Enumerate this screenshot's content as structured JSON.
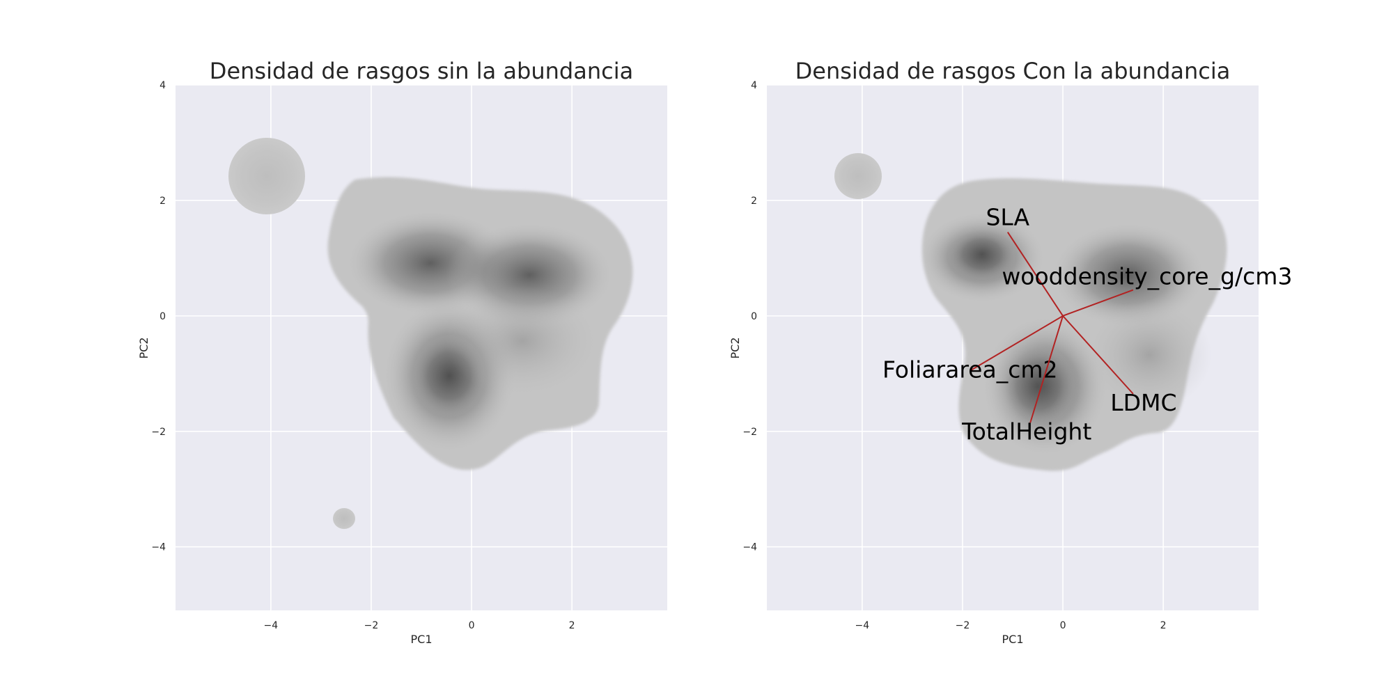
{
  "chart_data": [
    {
      "type": "density",
      "title": "Densidad de rasgos sin la abundancia",
      "xlabel": "PC1",
      "ylabel": "PC2",
      "xlim": [
        -5.9,
        3.9
      ],
      "ylim": [
        -5.1,
        4.0
      ],
      "xticks": [
        -4,
        -2,
        0,
        2
      ],
      "yticks": [
        -4,
        -2,
        0,
        2,
        4
      ],
      "xtick_labels": [
        "−4",
        "−2",
        "0",
        "2"
      ],
      "ytick_labels": [
        "−4",
        "−2",
        "0",
        "2",
        "4"
      ],
      "grid": true,
      "density_peaks": [
        {
          "x": -0.9,
          "y": 0.95,
          "level": "high"
        },
        {
          "x": 1.2,
          "y": 0.7,
          "level": "high"
        },
        {
          "x": -0.5,
          "y": -1.05,
          "level": "highest"
        },
        {
          "x": -4.2,
          "y": 2.4,
          "level": "low"
        },
        {
          "x": -2.55,
          "y": -3.5,
          "level": "low"
        }
      ]
    },
    {
      "type": "density",
      "title": "Densidad de rasgos Con la abundancia",
      "xlabel": "PC1",
      "ylabel": "PC2",
      "xlim": [
        -5.9,
        3.9
      ],
      "ylim": [
        -5.1,
        4.0
      ],
      "xticks": [
        -4,
        -2,
        0,
        2
      ],
      "yticks": [
        -4,
        -2,
        0,
        2,
        4
      ],
      "xtick_labels": [
        "−4",
        "−2",
        "0",
        "2"
      ],
      "ytick_labels": [
        "−4",
        "−2",
        "0",
        "2",
        "4"
      ],
      "grid": true,
      "density_peaks": [
        {
          "x": -1.3,
          "y": 1.1,
          "level": "highest"
        },
        {
          "x": 1.5,
          "y": 0.75,
          "level": "high"
        },
        {
          "x": -0.55,
          "y": -1.2,
          "level": "highest"
        },
        {
          "x": 1.9,
          "y": -0.8,
          "level": "medium"
        },
        {
          "x": -4.2,
          "y": 2.4,
          "level": "low"
        }
      ],
      "loadings": [
        {
          "name": "SLA",
          "x": -1.1,
          "y": 1.45
        },
        {
          "name": "wooddensity_core_g/cm3",
          "x": 1.4,
          "y": 0.45
        },
        {
          "name": "Foliararea_cm2",
          "x": -1.85,
          "y": -0.95
        },
        {
          "name": "LDMC",
          "x": 1.4,
          "y": -1.35
        },
        {
          "name": "TotalHeight",
          "x": -0.65,
          "y": -1.85
        }
      ],
      "loading_color": "#b22222"
    }
  ]
}
